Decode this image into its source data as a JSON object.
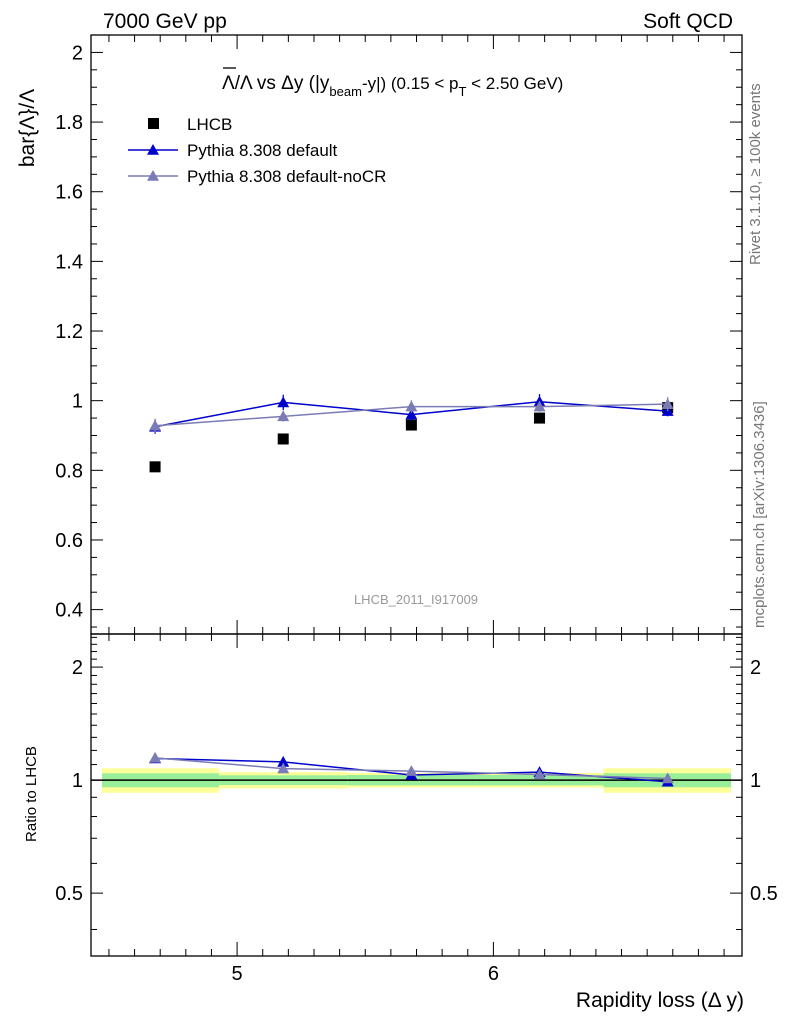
{
  "header": {
    "left": "7000 GeV pp",
    "right": "Soft QCD"
  },
  "side": {
    "rivet": "Rivet 3.1.10, ≥ 100k events",
    "mcplots": "mcplots.cern.ch [arXiv:1306.3436]"
  },
  "watermark": "LHCB_2011_I917009",
  "chart_data": {
    "type": "scatter",
    "title": {
      "main": "Λ/Λ vs Δy (|y",
      "sub": "beam",
      "mid": "-y|) (0.15 < p",
      "sub2": "T",
      "tail": " < 2.50 GeV)"
    },
    "xlabel": "Rapidity loss (Δ y)",
    "ylabel": "bar{Λ}/Λ",
    "ratio_ylabel": "Ratio to LHCB",
    "xlim": [
      4.43,
      6.97
    ],
    "ylim": [
      0.33,
      2.05
    ],
    "ratio_ylim": [
      0.34,
      2.45
    ],
    "ratio_scale": "log",
    "x_ticks": [
      "5",
      "6"
    ],
    "y_ticks": [
      "0.4",
      "0.6",
      "0.8",
      "1",
      "1.2",
      "1.4",
      "1.6",
      "1.8",
      "2"
    ],
    "ratio_y_ticks": [
      "0.5",
      "1",
      "2"
    ],
    "legend_position": "top-left",
    "series": [
      {
        "name": "LHCB",
        "color": "#000000",
        "marker": "square",
        "x": [
          4.68,
          5.18,
          5.68,
          6.18,
          6.68
        ],
        "y": [
          0.81,
          0.89,
          0.93,
          0.95,
          0.98
        ],
        "band_edges": [
          4.43,
          4.93,
          5.43,
          5.93,
          6.43,
          6.93
        ],
        "band_inner": [
          0.043,
          0.03,
          0.032,
          0.032,
          0.043
        ],
        "band_outer": [
          0.075,
          0.05,
          0.045,
          0.045,
          0.075
        ]
      },
      {
        "name": "Pythia 8.308 default",
        "color": "#0000cc",
        "marker": "triangle",
        "x": [
          4.68,
          5.18,
          5.68,
          6.18,
          6.68
        ],
        "y": [
          0.925,
          0.995,
          0.96,
          0.997,
          0.97
        ],
        "err": [
          0.02,
          0.022,
          0.018,
          0.022,
          0.015
        ],
        "ratio": [
          1.142,
          1.118,
          1.032,
          1.05,
          0.99
        ]
      },
      {
        "name": "Pythia 8.308 default-noCR",
        "color": "#7b7bb5",
        "marker": "triangle",
        "x": [
          4.68,
          5.18,
          5.68,
          6.18,
          6.68
        ],
        "y": [
          0.928,
          0.955,
          0.983,
          0.983,
          0.99
        ],
        "err": [
          0.02,
          0.015,
          0.018,
          0.015,
          0.02
        ],
        "ratio": [
          1.146,
          1.073,
          1.057,
          1.035,
          1.01
        ]
      }
    ]
  }
}
